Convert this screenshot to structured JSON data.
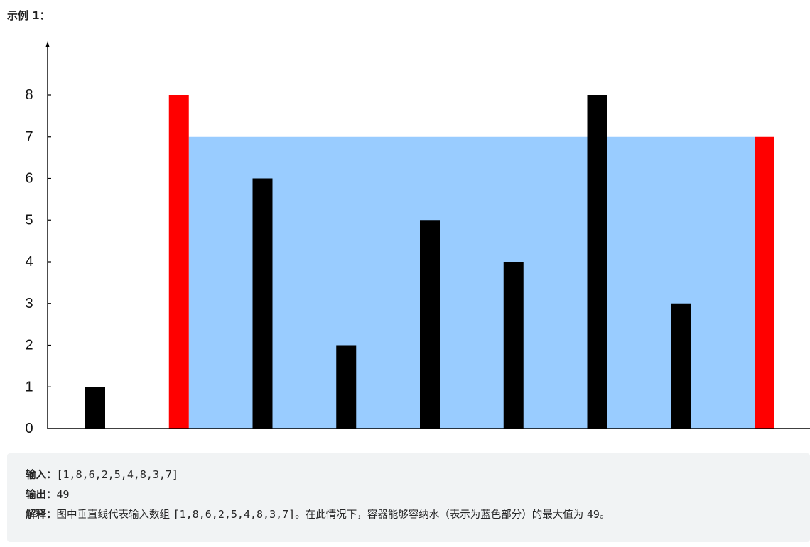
{
  "heading": "示例 1：",
  "chart_data": {
    "type": "bar",
    "heights": [
      1,
      8,
      6,
      2,
      5,
      4,
      8,
      3,
      7
    ],
    "container": {
      "left_index": 1,
      "right_index": 8,
      "water_level": 7
    },
    "yticks": [
      "0",
      "1",
      "2",
      "3",
      "4",
      "5",
      "6",
      "7",
      "8"
    ],
    "ylim": [
      0,
      8
    ],
    "colors": {
      "bar": "#000000",
      "container_wall": "#ff0000",
      "water": "#99ccff",
      "axis": "#000000"
    }
  },
  "example": {
    "input_label": "输入：",
    "input_value": "[1,8,6,2,5,4,8,3,7]",
    "output_label": "输出：",
    "output_value": "49",
    "explanation_label": "解释：",
    "explanation_text_1": "图中垂直线代表输入数组 ",
    "explanation_code_1": "[1,8,6,2,5,4,8,3,7]",
    "explanation_text_2": "。在此情况下，容器能够容纳水（表示为蓝色部分）的最大值为 ",
    "explanation_code_2": "49",
    "explanation_text_3": "。"
  }
}
